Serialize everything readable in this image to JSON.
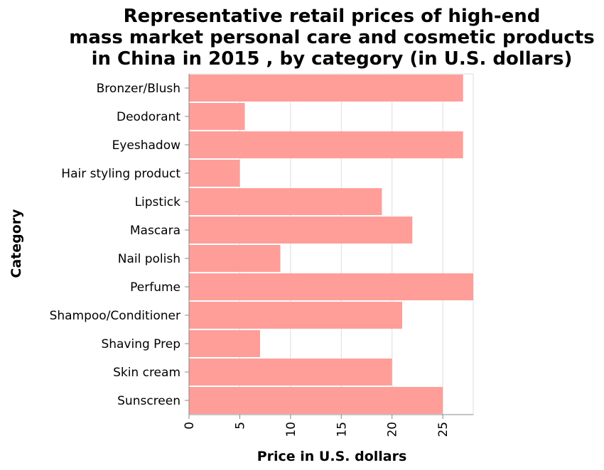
{
  "chart_data": {
    "type": "bar",
    "orientation": "horizontal",
    "title_lines": [
      "Representative retail prices of high-end",
      "mass market personal care and cosmetic products",
      "in China in 2015 , by category (in U.S. dollars)"
    ],
    "xlabel": "Price in U.S. dollars",
    "ylabel": "Category",
    "xlim": [
      0,
      28
    ],
    "xticks": [
      0,
      5,
      10,
      15,
      20,
      25
    ],
    "grid": true,
    "bar_color": "#ff9e99",
    "categories": [
      "Bronzer/Blush",
      "Deodorant",
      "Eyeshadow",
      "Hair styling product",
      "Lipstick",
      "Mascara",
      "Nail polish",
      "Perfume",
      "Shampoo/Conditioner",
      "Shaving Prep",
      "Skin cream",
      "Sunscreen"
    ],
    "values": [
      27,
      5.5,
      27,
      5,
      19,
      22,
      9,
      28,
      21,
      7,
      20,
      25
    ]
  }
}
